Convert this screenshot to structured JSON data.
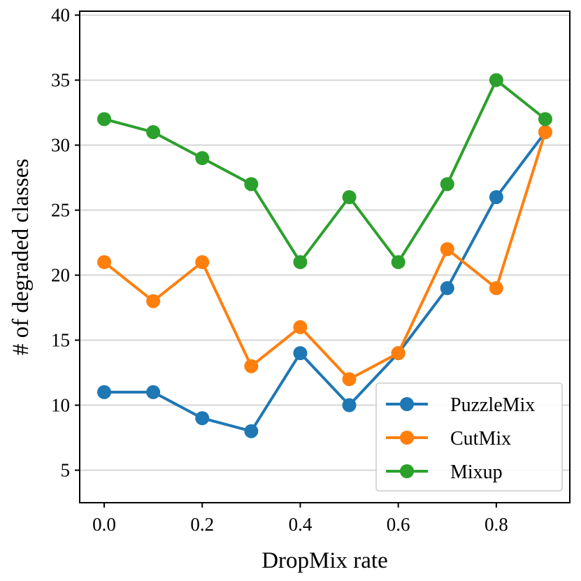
{
  "chart_data": {
    "type": "line",
    "title": "",
    "xlabel": "DropMix rate",
    "ylabel": "# of degraded classes",
    "x": [
      0.0,
      0.1,
      0.2,
      0.3,
      0.4,
      0.5,
      0.6,
      0.7,
      0.8,
      0.9
    ],
    "xlim": [
      -0.05,
      0.95
    ],
    "ylim": [
      2.5,
      40.3
    ],
    "xticks": [
      0.0,
      0.2,
      0.4,
      0.6,
      0.8
    ],
    "xtick_labels": [
      "0.0",
      "0.2",
      "0.4",
      "0.6",
      "0.8"
    ],
    "yticks": [
      5,
      10,
      15,
      20,
      25,
      30,
      35,
      40
    ],
    "ytick_labels": [
      "5",
      "10",
      "15",
      "20",
      "25",
      "30",
      "35",
      "40"
    ],
    "grid": "horizontal",
    "legend_position": "lower-right",
    "series": [
      {
        "name": "PuzzleMix",
        "color": "#1f77b4",
        "values": [
          11,
          11,
          9,
          8,
          14,
          10,
          14,
          19,
          26,
          31
        ]
      },
      {
        "name": "CutMix",
        "color": "#ff7f0e",
        "values": [
          21,
          18,
          21,
          13,
          16,
          12,
          14,
          22,
          19,
          31
        ]
      },
      {
        "name": "Mixup",
        "color": "#2ca02c",
        "values": [
          32,
          31,
          29,
          27,
          21,
          26,
          21,
          27,
          35,
          32
        ]
      }
    ]
  }
}
